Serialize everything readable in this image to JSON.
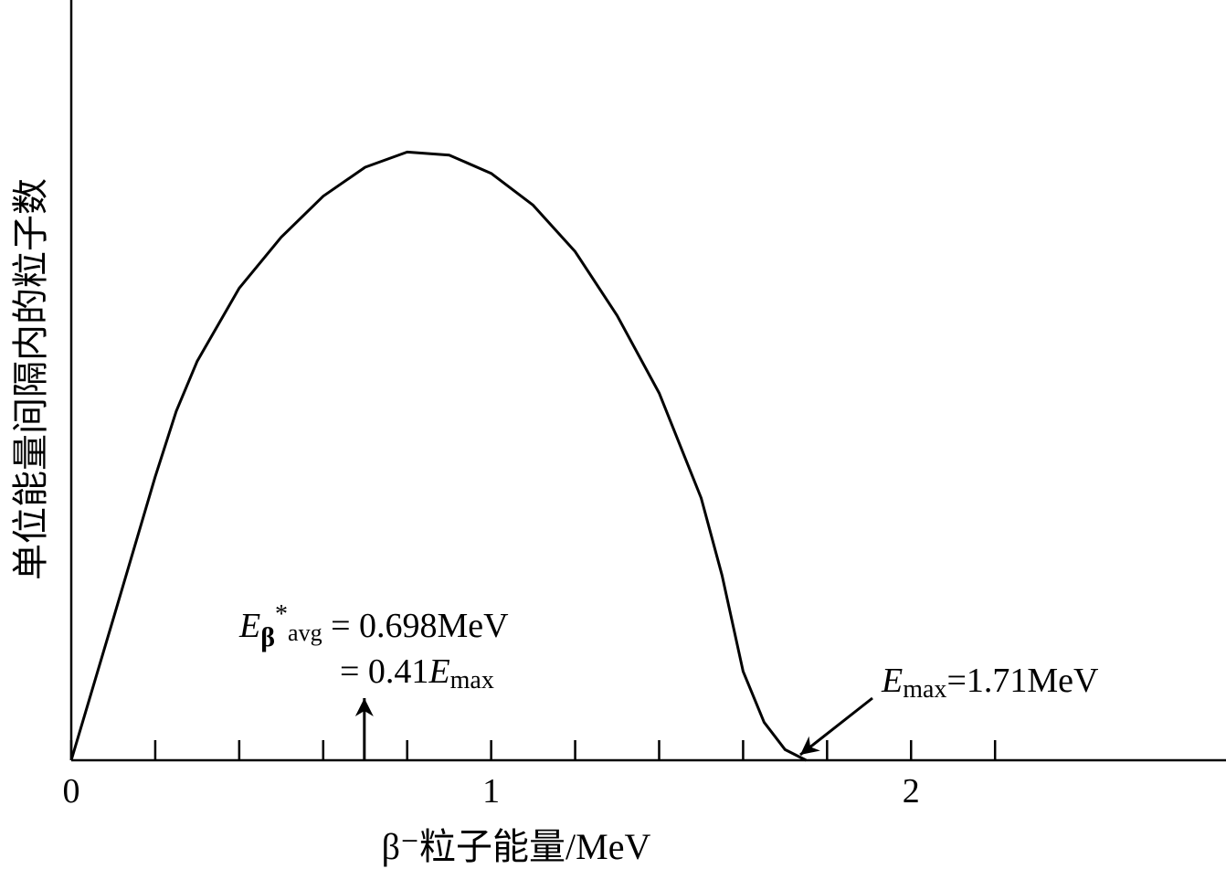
{
  "chart_data": {
    "type": "line",
    "x_label": "β⁻粒子能量/MeV",
    "y_label": "单位能量间隔内的粒子数",
    "xlim": [
      0,
      2.75
    ],
    "ylim": [
      0,
      100
    ],
    "xticks": [
      0,
      1,
      2
    ],
    "xminor_ticks": [
      0.2,
      0.4,
      0.6,
      0.8,
      1.2,
      1.4,
      1.6,
      1.8,
      2.2
    ],
    "series": [
      {
        "color": "#000000",
        "x": [
          0,
          0.1,
          0.2,
          0.25,
          0.3,
          0.4,
          0.5,
          0.6,
          0.7,
          0.8,
          0.9,
          1.0,
          1.1,
          1.2,
          1.3,
          1.4,
          1.5,
          1.55,
          1.6,
          1.65,
          1.7,
          1.75
        ],
        "values": [
          0,
          18.6,
          37.3,
          45.9,
          52.5,
          62.1,
          68.8,
          74.2,
          78.0,
          80.0,
          79.6,
          77.2,
          73.0,
          66.9,
          58.5,
          48.3,
          34.5,
          24.3,
          11.7,
          5.0,
          1.4,
          0
        ]
      }
    ],
    "avg_annotation": {
      "x": 0.698,
      "symbol": "E",
      "sub": "β",
      "sup": "*",
      "sub2": "avg",
      "rest": " = 0.698MeV",
      "line2_prefix": "= 0.41",
      "line2_symbol": "E",
      "line2_sub": "max"
    },
    "max_annotation": {
      "x": 1.71,
      "symbol": "E",
      "sub": "max",
      "rest": "=1.71MeV"
    }
  }
}
